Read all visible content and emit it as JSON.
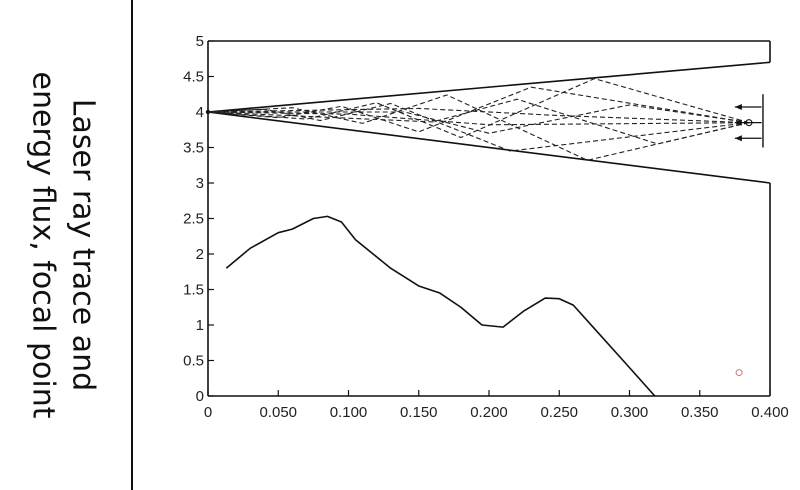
{
  "side_title": {
    "line1": "Laser ray trace and",
    "line2": "energy flux, focal point"
  },
  "chart_data": {
    "type": "line",
    "title": "Laser ray trace and energy flux, focal point",
    "xlabel": "",
    "ylabel": "",
    "xlim": [
      0,
      0.4
    ],
    "ylim": [
      0,
      5
    ],
    "x_ticks": [
      "0",
      "0.050",
      "0.100",
      "0.150",
      "0.200",
      "0.250",
      "0.300",
      "0.350",
      "0.400"
    ],
    "y_ticks": [
      "0",
      "0.5",
      "1",
      "1.5",
      "2",
      "2.5",
      "3",
      "3.5",
      "4",
      "4.5",
      "5"
    ],
    "grid": false,
    "series": [
      {
        "style": "solid",
        "x": [
          0.013,
          0.03,
          0.05,
          0.06,
          0.075,
          0.085,
          0.095,
          0.105,
          0.13,
          0.15,
          0.165,
          0.18,
          0.195,
          0.21,
          0.225,
          0.24,
          0.25,
          0.26,
          0.275,
          0.3,
          0.318
        ],
        "y": [
          1.8,
          2.08,
          2.3,
          2.35,
          2.5,
          2.53,
          2.45,
          2.2,
          1.8,
          1.55,
          1.45,
          1.25,
          1.0,
          0.97,
          1.2,
          1.38,
          1.37,
          1.28,
          0.95,
          0.4,
          0.0
        ]
      }
    ],
    "annotations": {
      "channel_upper_wall": {
        "x": [
          0,
          0.4
        ],
        "y": [
          4.0,
          4.7
        ]
      },
      "channel_lower_wall": {
        "x": [
          0,
          0.4
        ],
        "y": [
          4.0,
          3.0
        ]
      },
      "focal_point": {
        "x": 0,
        "y": 4.0
      },
      "source_plane_x": 0.395,
      "source_y_range": [
        3.5,
        4.25
      ],
      "beam_origin": {
        "x": 0.385,
        "y": 3.85
      },
      "rays_dashed": [
        [
          [
            0.385,
            3.85
          ],
          [
            0.275,
            4.47
          ],
          [
            0.18,
            3.64
          ],
          [
            0.12,
            4.13
          ],
          [
            0.07,
            3.9
          ],
          [
            0,
            4.0
          ]
        ],
        [
          [
            0.385,
            3.85
          ],
          [
            0.23,
            4.35
          ],
          [
            0.15,
            3.72
          ],
          [
            0.095,
            4.08
          ],
          [
            0.05,
            3.92
          ],
          [
            0,
            4.0
          ]
        ],
        [
          [
            0.385,
            3.85
          ],
          [
            0.27,
            3.32
          ],
          [
            0.17,
            4.24
          ],
          [
            0.11,
            3.84
          ],
          [
            0.06,
            4.06
          ],
          [
            0,
            4.0
          ]
        ],
        [
          [
            0.385,
            3.85
          ],
          [
            0.215,
            3.45
          ],
          [
            0.13,
            4.12
          ],
          [
            0.08,
            3.88
          ],
          [
            0.04,
            4.04
          ],
          [
            0,
            4.0
          ]
        ],
        [
          [
            0.385,
            3.85
          ],
          [
            0.3,
            4.1
          ],
          [
            0.2,
            3.7
          ],
          [
            0.14,
            4.0
          ],
          [
            0,
            4.0
          ]
        ],
        [
          [
            0.385,
            3.85
          ],
          [
            0.32,
            3.55
          ],
          [
            0.22,
            4.18
          ],
          [
            0.16,
            3.86
          ],
          [
            0,
            4.0
          ]
        ],
        [
          [
            0.385,
            3.85
          ],
          [
            0.25,
            3.95
          ],
          [
            0.15,
            4.05
          ],
          [
            0,
            4.0
          ]
        ],
        [
          [
            0.385,
            3.85
          ],
          [
            0.2,
            3.82
          ],
          [
            0.1,
            3.97
          ],
          [
            0,
            4.0
          ]
        ]
      ],
      "arrows_left": [
        {
          "x_from": 0.394,
          "x_to": 0.375,
          "y": 4.07
        },
        {
          "x_from": 0.394,
          "x_to": 0.375,
          "y": 3.85
        },
        {
          "x_from": 0.394,
          "x_to": 0.375,
          "y": 3.63
        }
      ],
      "small_circle": {
        "x": 0.378,
        "y": 0.33
      }
    }
  }
}
